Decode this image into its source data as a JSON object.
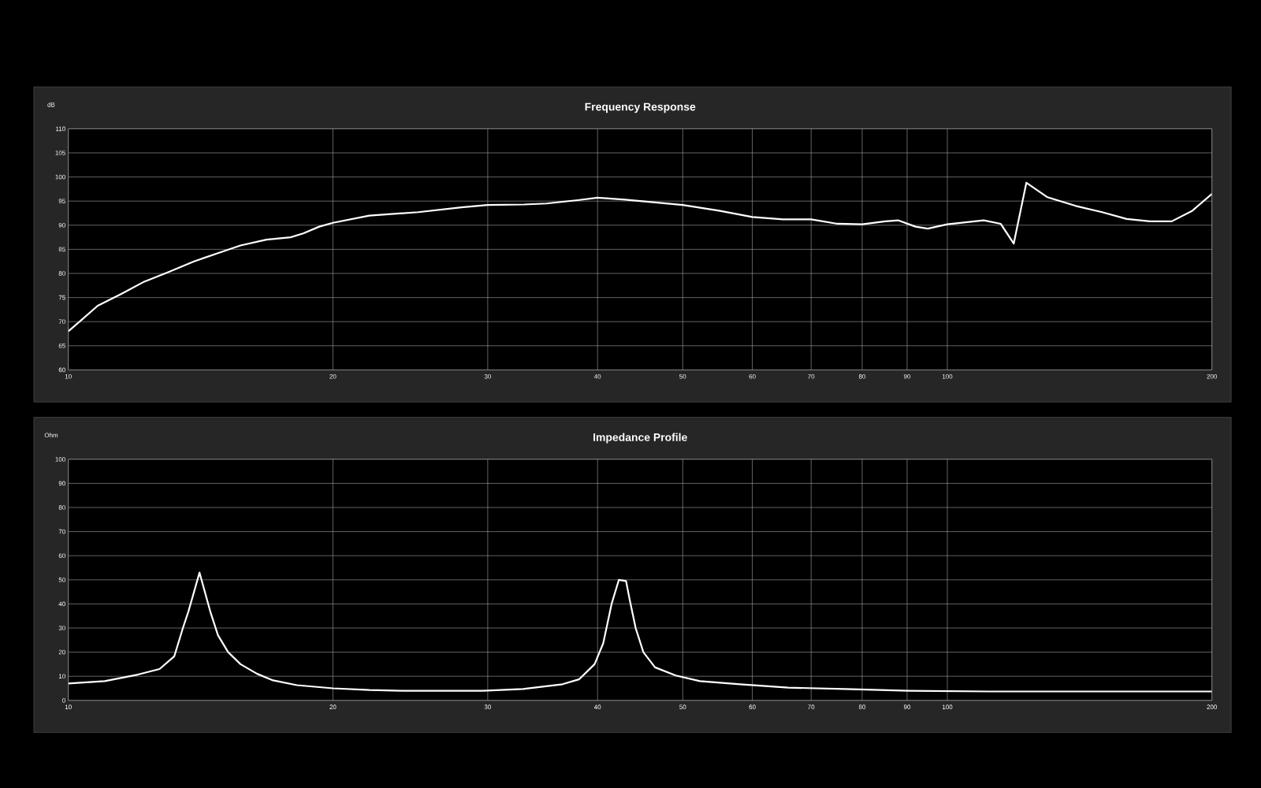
{
  "chart_data": [
    {
      "type": "line",
      "title": "Frequency Response",
      "ylabel": "dB",
      "log": "x",
      "grid": true,
      "xlim": [
        10,
        200
      ],
      "xticks": [
        10,
        20,
        30,
        40,
        50,
        60,
        70,
        80,
        90,
        100,
        200
      ],
      "ylim": [
        60,
        110
      ],
      "yticks": [
        60,
        65,
        70,
        75,
        80,
        85,
        90,
        95,
        100,
        105,
        110
      ],
      "series": [
        {
          "color": "#ffffff",
          "x": [
            10,
            10.3,
            10.8,
            11.5,
            12.2,
            13,
            13.9,
            14.8,
            15.7,
            16.8,
            17.9,
            18.5,
            19.3,
            20,
            22,
            25,
            28,
            30,
            33,
            35,
            38,
            40,
            43,
            46,
            50,
            55,
            60,
            65,
            70,
            75,
            80,
            85,
            88,
            92,
            95,
            100,
            110,
            115,
            119,
            123,
            130,
            140,
            150,
            160,
            170,
            180,
            190,
            200
          ],
          "values": [
            68,
            70,
            73.3,
            75.8,
            78.3,
            80.3,
            82.5,
            84.2,
            85.8,
            87,
            87.5,
            88.3,
            89.7,
            90.5,
            92,
            92.7,
            93.7,
            94.2,
            94.3,
            94.5,
            95.2,
            95.7,
            95.3,
            94.8,
            94.2,
            93,
            91.7,
            91.2,
            91.2,
            90.3,
            90.2,
            90.8,
            91,
            89.7,
            89.3,
            90.2,
            91,
            90.3,
            86.2,
            98.8,
            95.8,
            94,
            92.7,
            91.3,
            90.8,
            90.8,
            93,
            96.5
          ]
        }
      ]
    },
    {
      "type": "line",
      "title": "Impedance Profile",
      "ylabel": "Ohm",
      "log": "x",
      "grid": true,
      "xlim": [
        10,
        200
      ],
      "xticks": [
        10,
        20,
        30,
        40,
        50,
        60,
        70,
        80,
        90,
        100,
        200
      ],
      "ylim": [
        0,
        100
      ],
      "yticks": [
        0,
        10,
        20,
        30,
        40,
        50,
        60,
        70,
        80,
        90,
        100
      ],
      "series": [
        {
          "color": "#ffffff",
          "x": [
            10,
            11,
            12,
            12.7,
            13.2,
            13.5,
            13.7,
            13.9,
            14.1,
            14.3,
            14.5,
            14.8,
            15.2,
            15.7,
            16.4,
            17.1,
            18.2,
            20,
            22,
            24,
            29.6,
            32.9,
            36.5,
            38.1,
            39.7,
            40.6,
            41.5,
            42.3,
            43.1,
            43.5,
            44.2,
            45.1,
            46.5,
            49.1,
            52.3,
            58.1,
            65.9,
            76.4,
            90.4,
            111.6,
            200
          ],
          "values": [
            7,
            8,
            10.7,
            13,
            18.3,
            30,
            37,
            45,
            53,
            45,
            37,
            27,
            20,
            15,
            11,
            8.3,
            6.3,
            5,
            4.3,
            4,
            4,
            4.7,
            6.7,
            8.7,
            15,
            23.7,
            40,
            50,
            49.5,
            42,
            30,
            20,
            13.7,
            10.3,
            8,
            6.7,
            5.3,
            4.7,
            4,
            3.7,
            3.7
          ]
        }
      ]
    }
  ]
}
